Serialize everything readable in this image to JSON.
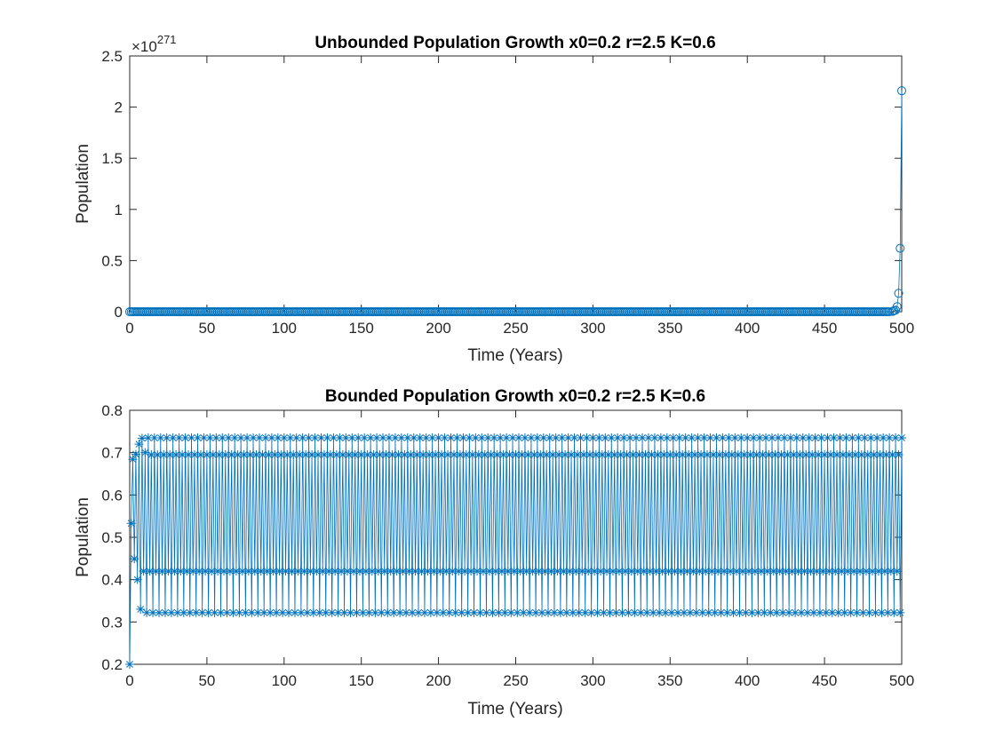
{
  "chart_data": [
    {
      "type": "line",
      "title": "Unbounded Population Growth x0=0.2 r=2.5 K=0.6",
      "xlabel": "Time (Years)",
      "ylabel": "Population",
      "xlim": [
        0,
        500
      ],
      "ylim": [
        0,
        2.5
      ],
      "y_exponent_label": "×10",
      "y_exponent_power": "271",
      "xticks": [
        "0",
        "50",
        "100",
        "150",
        "200",
        "250",
        "300",
        "350",
        "400",
        "450",
        "500"
      ],
      "yticks": [
        "0",
        "0.5",
        "1",
        "1.5",
        "2",
        "2.5"
      ],
      "marker": "circle",
      "color": "#0072BD",
      "series": [
        {
          "x": [
            0,
            492,
            494,
            495,
            496,
            497,
            498,
            499,
            500
          ],
          "y": [
            0,
            0,
            0.003,
            0.01,
            0.015,
            0.05,
            0.18,
            0.62,
            2.16
          ]
        }
      ]
    },
    {
      "type": "line",
      "title": "Bounded Population Growth x0=0.2 r=2.5 K=0.6",
      "xlabel": "Time (Years)",
      "ylabel": "Population",
      "xlim": [
        0,
        500
      ],
      "ylim": [
        0.2,
        0.8
      ],
      "xticks": [
        "0",
        "50",
        "100",
        "150",
        "200",
        "250",
        "300",
        "350",
        "400",
        "450",
        "500"
      ],
      "yticks": [
        "0.2",
        "0.3",
        "0.4",
        "0.5",
        "0.6",
        "0.7",
        "0.8"
      ],
      "marker": "asterisk",
      "color": "#0072BD",
      "series": [
        {
          "x": [
            0,
            1,
            2,
            3,
            4,
            5,
            6,
            7,
            8,
            9,
            10,
            11,
            12
          ],
          "y": [
            0.2,
            0.533,
            0.684,
            0.449,
            0.696,
            0.4,
            0.72,
            0.33,
            0.734,
            0.42,
            0.7,
            0.322,
            0.735
          ]
        }
      ],
      "cycle_start": 13,
      "cycle_values": [
        0.42,
        0.695,
        0.322,
        0.735
      ]
    }
  ]
}
